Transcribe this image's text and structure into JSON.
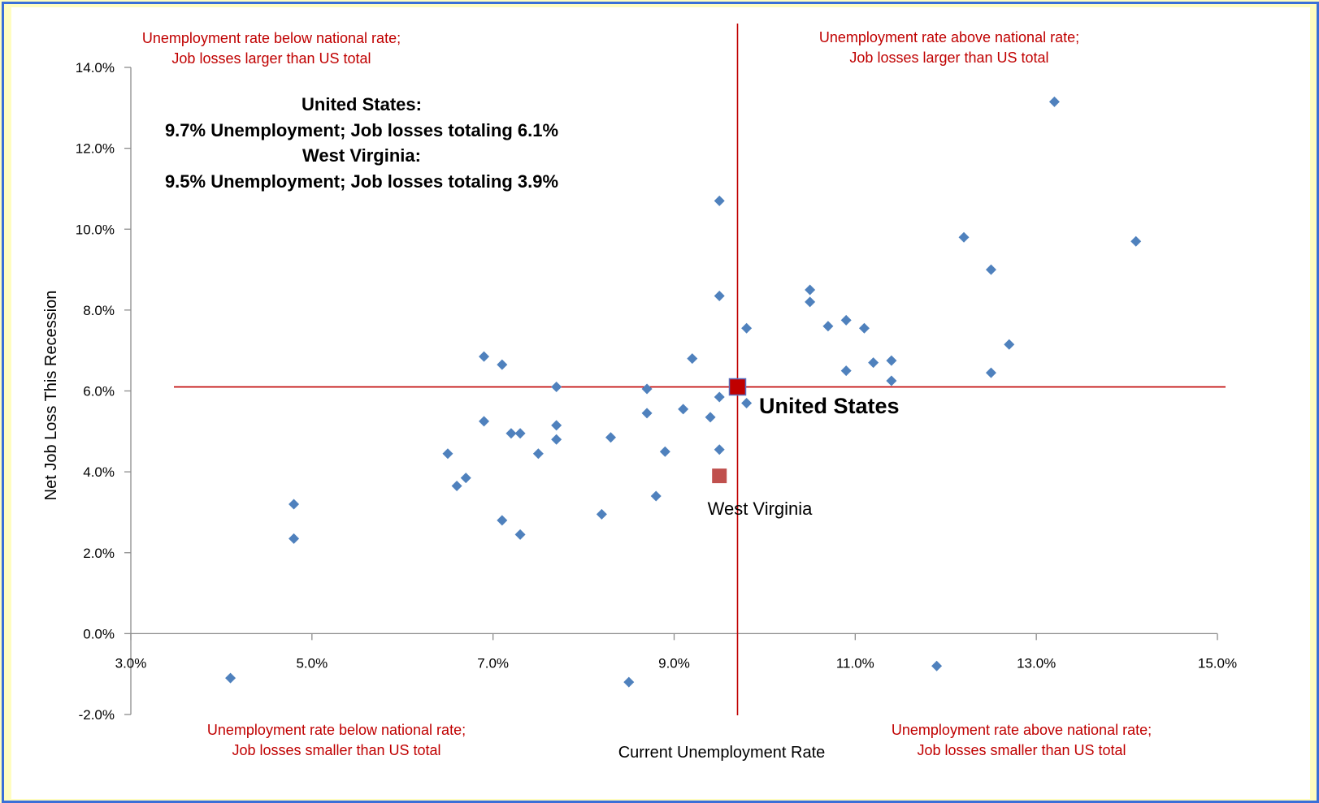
{
  "chart_data": {
    "type": "scatter",
    "xlabel": "Current Unemployment Rate",
    "ylabel": "Net Job Loss This Recession",
    "xlim": [
      3.0,
      15.0
    ],
    "ylim": [
      -2.0,
      14.0
    ],
    "x_ticks": [
      "3.0%",
      "5.0%",
      "7.0%",
      "9.0%",
      "11.0%",
      "13.0%",
      "15.0%"
    ],
    "y_ticks": [
      "-2.0%",
      "0.0%",
      "2.0%",
      "4.0%",
      "6.0%",
      "8.0%",
      "10.0%",
      "12.0%",
      "14.0%"
    ],
    "reference_lines": {
      "x": 9.7,
      "y": 6.1,
      "color": "#c00000"
    },
    "series_color": "#4f81bd",
    "points": [
      {
        "x": 4.1,
        "y": -1.1
      },
      {
        "x": 4.8,
        "y": 3.2
      },
      {
        "x": 4.8,
        "y": 2.35
      },
      {
        "x": 6.5,
        "y": 4.45
      },
      {
        "x": 6.6,
        "y": 3.65
      },
      {
        "x": 6.7,
        "y": 3.85
      },
      {
        "x": 6.9,
        "y": 6.85
      },
      {
        "x": 6.9,
        "y": 5.25
      },
      {
        "x": 7.1,
        "y": 6.65
      },
      {
        "x": 7.1,
        "y": 2.8
      },
      {
        "x": 7.2,
        "y": 4.95
      },
      {
        "x": 7.3,
        "y": 4.95
      },
      {
        "x": 7.3,
        "y": 2.45
      },
      {
        "x": 7.5,
        "y": 4.45
      },
      {
        "x": 7.7,
        "y": 6.1
      },
      {
        "x": 7.7,
        "y": 5.15
      },
      {
        "x": 7.7,
        "y": 4.8
      },
      {
        "x": 8.2,
        "y": 2.95
      },
      {
        "x": 8.3,
        "y": 4.85
      },
      {
        "x": 8.5,
        "y": -1.2
      },
      {
        "x": 8.7,
        "y": 6.05
      },
      {
        "x": 8.7,
        "y": 5.45
      },
      {
        "x": 8.8,
        "y": 3.4
      },
      {
        "x": 8.9,
        "y": 4.5
      },
      {
        "x": 9.1,
        "y": 5.55
      },
      {
        "x": 9.2,
        "y": 6.8
      },
      {
        "x": 9.4,
        "y": 5.35
      },
      {
        "x": 9.5,
        "y": 10.7
      },
      {
        "x": 9.5,
        "y": 8.35
      },
      {
        "x": 9.5,
        "y": 5.85
      },
      {
        "x": 9.5,
        "y": 4.55
      },
      {
        "x": 9.8,
        "y": 7.55
      },
      {
        "x": 9.8,
        "y": 5.7
      },
      {
        "x": 10.5,
        "y": 8.5
      },
      {
        "x": 10.5,
        "y": 8.2
      },
      {
        "x": 10.7,
        "y": 7.6
      },
      {
        "x": 10.9,
        "y": 7.75
      },
      {
        "x": 10.9,
        "y": 6.5
      },
      {
        "x": 11.1,
        "y": 7.55
      },
      {
        "x": 11.2,
        "y": 6.7
      },
      {
        "x": 11.4,
        "y": 6.75
      },
      {
        "x": 11.4,
        "y": 6.25
      },
      {
        "x": 11.9,
        "y": -0.8
      },
      {
        "x": 12.2,
        "y": 9.8
      },
      {
        "x": 12.5,
        "y": 9.0
      },
      {
        "x": 12.5,
        "y": 6.45
      },
      {
        "x": 12.7,
        "y": 7.15
      },
      {
        "x": 13.2,
        "y": 13.15
      },
      {
        "x": 14.1,
        "y": 9.7
      }
    ],
    "highlights": [
      {
        "name": "United States",
        "x": 9.7,
        "y": 6.1,
        "color": "#c00000"
      },
      {
        "name": "West Virginia",
        "x": 9.5,
        "y": 3.9,
        "color": "#c0504d"
      }
    ],
    "quadrant_notes": {
      "top_left": [
        "Unemployment rate below national rate;",
        "Job losses larger than US total"
      ],
      "top_right": [
        "Unemployment rate above national rate;",
        "Job losses larger than US total"
      ],
      "bottom_left": [
        "Unemployment rate below national rate;",
        "Job losses smaller than US total"
      ],
      "bottom_right": [
        "Unemployment rate above national rate;",
        "Job losses smaller than US total"
      ]
    },
    "summary": [
      "United States:",
      "9.7% Unemployment; Job losses totaling 6.1%",
      "West Virginia:",
      "9.5% Unemployment; Job losses totaling 3.9%"
    ]
  }
}
